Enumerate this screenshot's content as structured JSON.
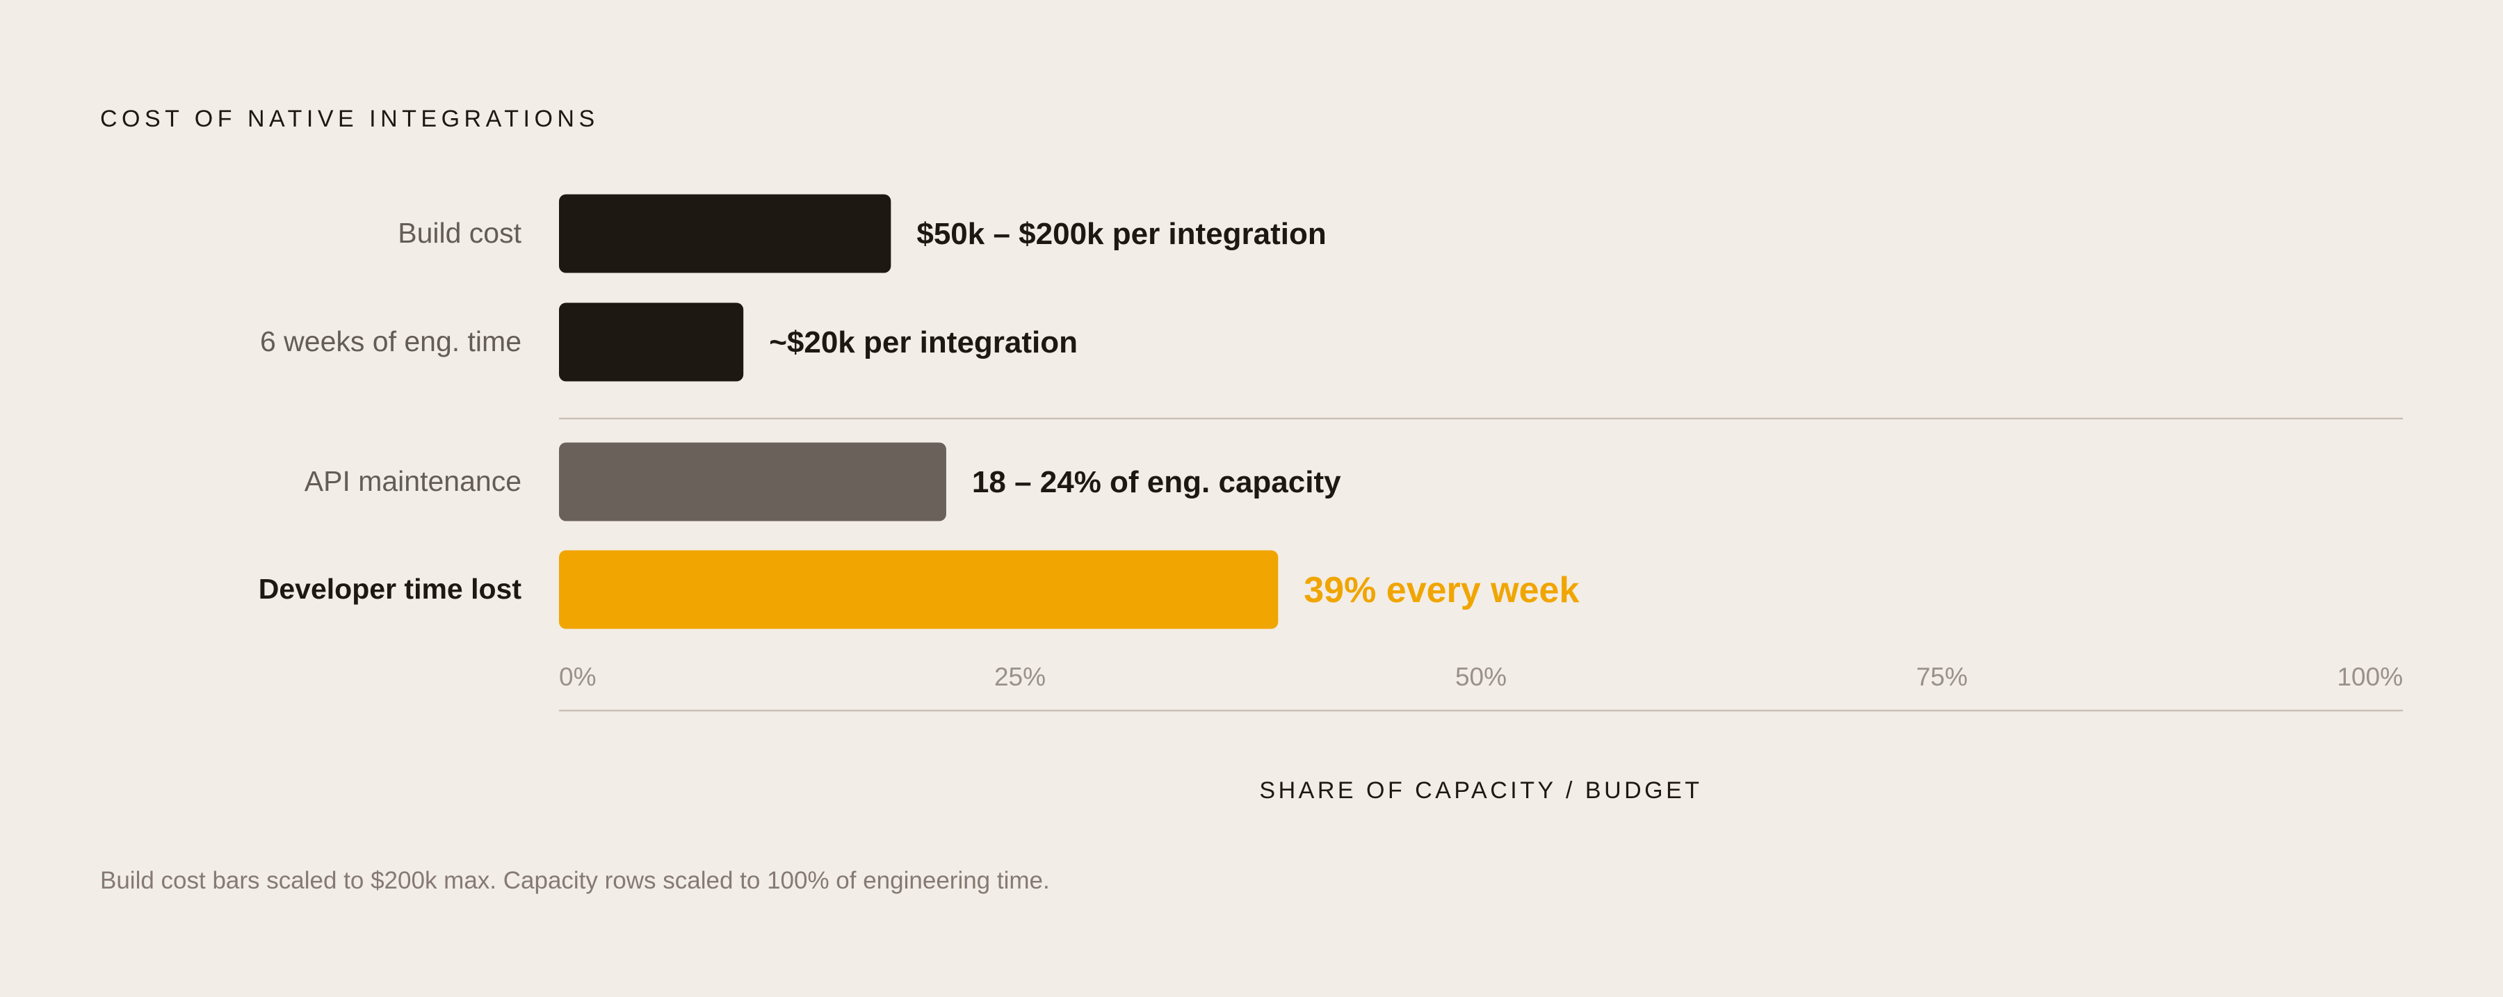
{
  "chart_data": {
    "type": "bar",
    "orientation": "horizontal",
    "title": "COST OF NATIVE INTEGRATIONS",
    "xlabel": "SHARE OF CAPACITY / BUDGET",
    "ylabel": "",
    "xlim": [
      0,
      100
    ],
    "x_ticks": [
      "0%",
      "25%",
      "50%",
      "75%",
      "100%"
    ],
    "x_tick_values": [
      0,
      25,
      50,
      75,
      100
    ],
    "grid": false,
    "legend": "none",
    "categories": [
      "Build cost",
      "6 weeks of eng. time",
      "API maintenance",
      "Developer time lost"
    ],
    "values": [
      18,
      10,
      21,
      39
    ],
    "value_labels": [
      "$50k – $200k per integration",
      "~$20k per integration",
      "18 – 24% of eng. capacity",
      "39% every week"
    ],
    "colors": [
      "#1e1813",
      "#1e1813",
      "#69615a",
      "#f0a500"
    ],
    "highlight_category": "Developer time lost",
    "groups": [
      {
        "name": "build",
        "categories": [
          "Build cost",
          "6 weeks of eng. time"
        ]
      },
      {
        "name": "capacity",
        "categories": [
          "API maintenance",
          "Developer time lost"
        ]
      }
    ],
    "footnote": "Build cost bars scaled to $200k max. Capacity rows scaled to 100% of engineering time."
  },
  "colors": {
    "background": "#f2ede7",
    "title": "#1e1813",
    "category_label": "#645c56",
    "value_label": "#1e1813",
    "axis_tick": "#9a908a",
    "rule": "#c8c0b8",
    "footnote": "#857a73",
    "highlight": "#f0a500"
  }
}
